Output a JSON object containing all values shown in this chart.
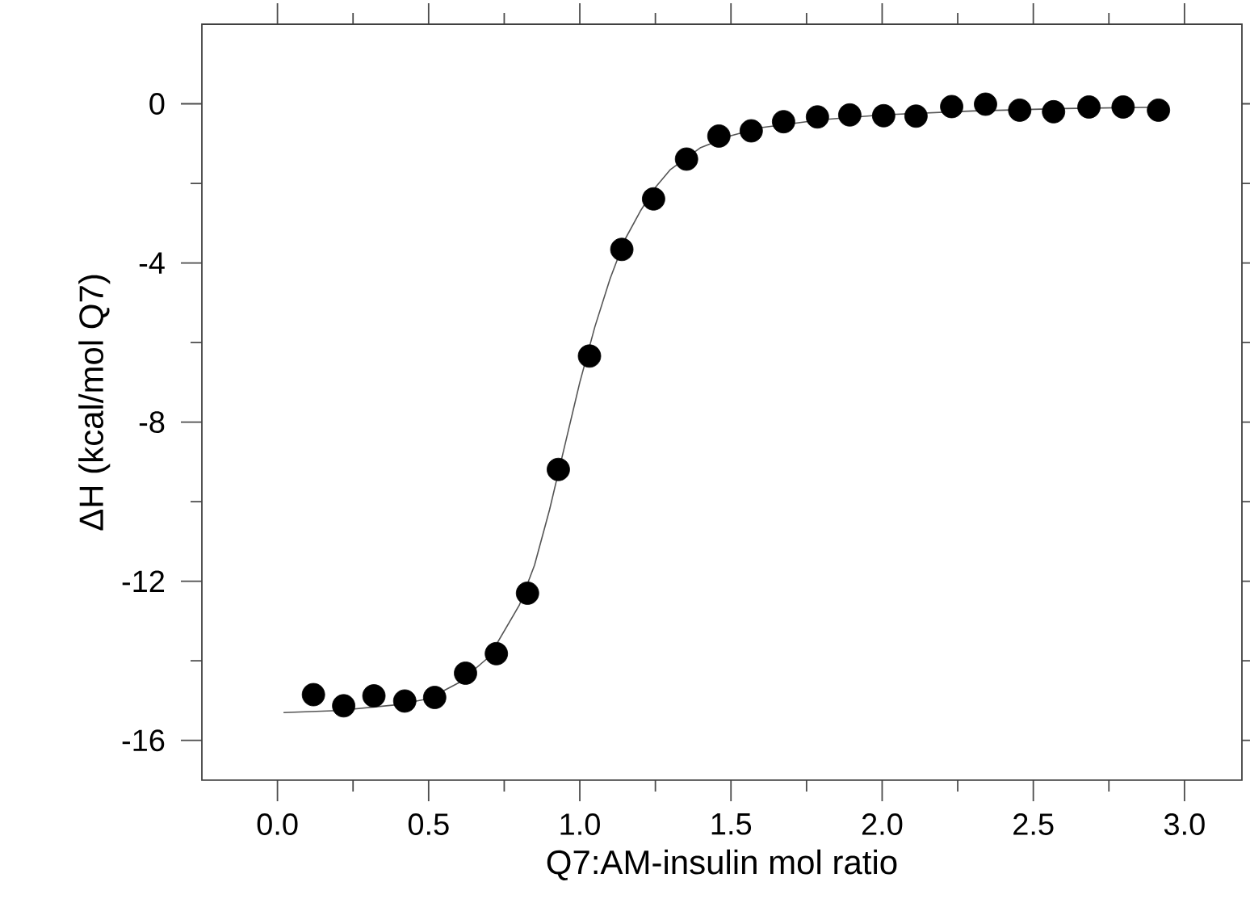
{
  "chart_data": {
    "type": "scatter",
    "xlabel": "Q7:AM-insulin mol ratio",
    "ylabel": "ΔH (kcal/mol Q7)",
    "xlim": [
      -0.25,
      3.19
    ],
    "ylim": [
      -17,
      2
    ],
    "xticks": [
      {
        "value": 0,
        "label": "0.0"
      },
      0.5,
      {
        "value": 1,
        "label": "1.0"
      },
      1.5,
      {
        "value": 2,
        "label": "2.0"
      },
      2.5,
      {
        "value": 3,
        "label": "3.0"
      }
    ],
    "yticks": [
      -16,
      -12,
      -8,
      -4,
      0
    ],
    "series": [
      {
        "marker": "circle",
        "color": "#000000",
        "x": [
          0.119,
          0.219,
          0.319,
          0.421,
          0.52,
          0.622,
          0.724,
          0.827,
          0.929,
          1.032,
          1.139,
          1.244,
          1.353,
          1.46,
          1.567,
          1.674,
          1.786,
          1.893,
          2.005,
          2.112,
          2.23,
          2.342,
          2.455,
          2.567,
          2.684,
          2.797,
          2.914
        ],
        "values": [
          -14.85,
          -15.13,
          -14.88,
          -15.01,
          -14.92,
          -14.31,
          -13.82,
          -12.3,
          -9.19,
          -6.34,
          -3.66,
          -2.39,
          -1.39,
          -0.81,
          -0.68,
          -0.45,
          -0.33,
          -0.28,
          -0.3,
          -0.31,
          -0.07,
          -0.01,
          -0.16,
          -0.2,
          -0.08,
          -0.08,
          -0.16
        ]
      },
      {
        "type": "line",
        "marker": "none",
        "line_style": "solid",
        "color": "#555555",
        "x": [
          0.02,
          0.2,
          0.4,
          0.5,
          0.6,
          0.7,
          0.8,
          0.85,
          0.9,
          0.95,
          1.0,
          1.05,
          1.1,
          1.15,
          1.2,
          1.25,
          1.3,
          1.4,
          1.5,
          1.6,
          1.8,
          2.0,
          2.3,
          2.6,
          2.95
        ],
        "values": [
          -15.3,
          -15.25,
          -15.1,
          -14.95,
          -14.55,
          -13.9,
          -12.6,
          -11.6,
          -10.2,
          -8.6,
          -7.0,
          -5.6,
          -4.4,
          -3.4,
          -2.7,
          -2.1,
          -1.65,
          -1.1,
          -0.8,
          -0.6,
          -0.4,
          -0.28,
          -0.18,
          -0.12,
          -0.08
        ]
      }
    ]
  }
}
